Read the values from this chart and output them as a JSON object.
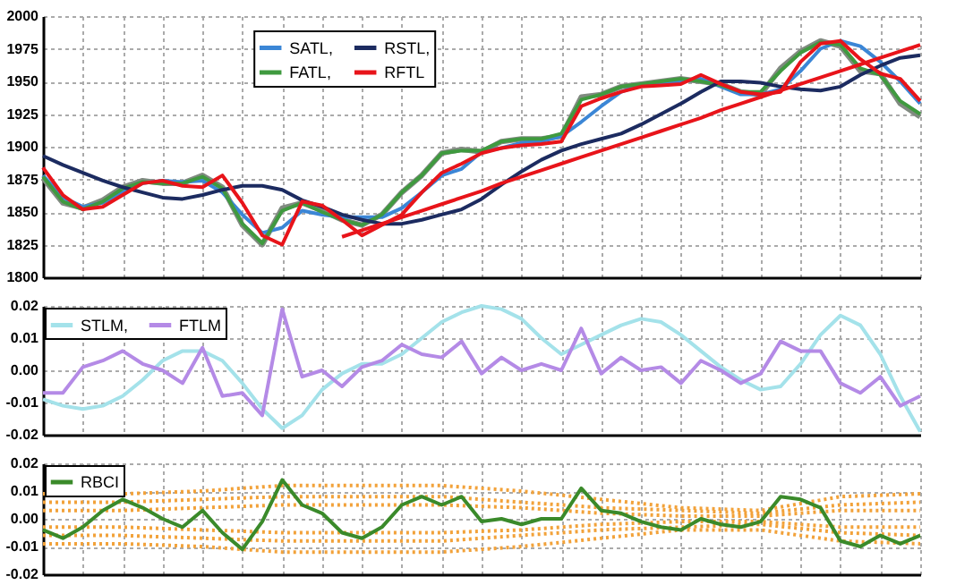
{
  "chart_data": [
    {
      "type": "line",
      "categories": [
        null,
        null,
        null,
        null,
        null,
        null,
        null,
        null,
        null,
        null,
        null,
        null,
        null,
        null,
        null,
        null,
        null,
        null,
        null,
        null,
        null,
        null,
        null,
        null,
        null,
        null,
        null,
        null,
        null,
        null,
        null,
        null,
        null,
        null,
        null,
        null,
        null,
        null,
        null,
        null,
        null,
        null,
        null,
        null,
        null
      ],
      "ylim": [
        1800,
        2000
      ],
      "yticks": [
        1800,
        1825,
        1850,
        1875,
        1900,
        1925,
        1950,
        1975,
        2000
      ],
      "tick_labels": "y",
      "grid": true,
      "legend": "top",
      "line_style": "solid",
      "marker": "none",
      "series": [
        {
          "color": "#808a80",
          "values": [
            1876,
            1857,
            1853,
            1859,
            1869,
            1874,
            1872,
            1872,
            1878,
            1869,
            1840,
            1825,
            1853,
            1857,
            1851,
            1844,
            1840,
            1848,
            1865,
            1878,
            1895,
            1898,
            1896,
            1904,
            1906,
            1906,
            1908,
            1938,
            1940,
            1946,
            1948,
            1950,
            1952,
            1950,
            1948,
            1942,
            1940,
            1960,
            1973,
            1981,
            1977,
            1958,
            1956,
            1933,
            1923
          ]
        },
        {
          "name": "SATL,",
          "color": "#3b86d6",
          "values": [
            1878,
            1861,
            1854,
            1857,
            1865,
            1872,
            1874,
            1873,
            1874,
            1865,
            1848,
            1834,
            1838,
            1851,
            1848,
            1846,
            1846,
            1846,
            1853,
            1865,
            1878,
            1883,
            1896,
            1899,
            1903,
            1904,
            1908,
            1919,
            1931,
            1942,
            1947,
            1948,
            1950,
            1952,
            1946,
            1940,
            1940,
            1944,
            1958,
            1975,
            1981,
            1977,
            1965,
            1950,
            1933
          ]
        },
        {
          "name": "FATL,",
          "color": "#3f9a3f",
          "values": [
            1877,
            1858,
            1852,
            1858,
            1868,
            1873,
            1872,
            1872,
            1877,
            1868,
            1841,
            1826,
            1851,
            1857,
            1850,
            1844,
            1840,
            1848,
            1865,
            1878,
            1895,
            1897,
            1897,
            1904,
            1906,
            1906,
            1910,
            1936,
            1940,
            1946,
            1948,
            1950,
            1952,
            1950,
            1947,
            1942,
            1942,
            1958,
            1972,
            1980,
            1978,
            1960,
            1955,
            1935,
            1925
          ]
        },
        {
          "name": "RSTL,",
          "color": "#1c2b60",
          "values": [
            1893,
            1886,
            1880,
            1874,
            1869,
            1865,
            1861,
            1860,
            1863,
            1867,
            1870,
            1870,
            1867,
            1859,
            1854,
            1848,
            1844,
            1841,
            1841,
            1844,
            1848,
            1852,
            1860,
            1871,
            1881,
            1890,
            1897,
            1902,
            1906,
            1910,
            1917,
            1925,
            1933,
            1942,
            1950,
            1950,
            1949,
            1946,
            1944,
            1943,
            1946,
            1955,
            1962,
            1968,
            1970
          ]
        },
        {
          "name": "RFTL",
          "color": "#e8141a",
          "values": [
            1884,
            1863,
            1852,
            1854,
            1863,
            1872,
            1874,
            1870,
            1869,
            1878,
            1857,
            1832,
            1825,
            1858,
            1855,
            1844,
            1832,
            1840,
            1848,
            1865,
            1880,
            1887,
            1895,
            1899,
            1901,
            1902,
            1904,
            1931,
            1937,
            1942,
            1946,
            1947,
            1948,
            1955,
            1948,
            1942,
            1940,
            1942,
            1965,
            1979,
            1981,
            1967,
            1956,
            1952,
            1935
          ]
        },
        {
          "color": "#e8141a",
          "values": [
            null,
            null,
            null,
            null,
            null,
            null,
            null,
            null,
            null,
            null,
            null,
            null,
            null,
            null,
            null,
            1831,
            1836,
            1841,
            1846,
            1851,
            1856,
            1861,
            1866,
            1872,
            1877,
            1882,
            1887,
            1892,
            1897,
            1902,
            1907,
            1912,
            1917,
            1922,
            1928,
            1933,
            1938,
            1943,
            1948,
            1953,
            1958,
            1963,
            1968,
            1973,
            1978
          ]
        }
      ]
    },
    {
      "type": "line",
      "categories": [
        null,
        null,
        null,
        null,
        null,
        null,
        null,
        null,
        null,
        null,
        null,
        null,
        null,
        null,
        null,
        null,
        null,
        null,
        null,
        null,
        null,
        null,
        null,
        null,
        null,
        null,
        null,
        null,
        null,
        null,
        null,
        null,
        null,
        null,
        null,
        null,
        null,
        null,
        null,
        null,
        null,
        null,
        null,
        null,
        null
      ],
      "ylim": [
        -0.02,
        0.02
      ],
      "yticks": [
        -0.02,
        -0.01,
        {
          "value": 0,
          "label": "0.00"
        },
        0.01,
        0.02
      ],
      "tick_labels": "y",
      "grid": true,
      "legend": "top left",
      "line_style": "solid",
      "marker": "none",
      "series": [
        {
          "name": "STLM,",
          "color": "#a4e2ea",
          "values": [
            -0.009,
            -0.011,
            -0.012,
            -0.011,
            -0.008,
            -0.003,
            0.003,
            0.006,
            0.006,
            0.003,
            -0.004,
            -0.012,
            -0.018,
            -0.014,
            -0.006,
            -0.001,
            0.002,
            0.002,
            0.005,
            0.01,
            0.015,
            0.018,
            0.02,
            0.019,
            0.016,
            0.01,
            0.005,
            0.008,
            0.011,
            0.014,
            0.016,
            0.015,
            0.011,
            0.006,
            0.001,
            -0.003,
            -0.006,
            -0.005,
            0.002,
            0.011,
            0.017,
            0.014,
            0.005,
            -0.008,
            -0.019
          ]
        },
        {
          "name": "FTLM",
          "color": "#b48ae6",
          "values": [
            -0.007,
            -0.007,
            0.001,
            0.003,
            0.006,
            0.002,
            0.0,
            -0.004,
            0.007,
            -0.008,
            -0.007,
            -0.014,
            0.019,
            -0.002,
            0.0,
            -0.005,
            0.001,
            0.003,
            0.008,
            0.005,
            0.004,
            0.009,
            -0.001,
            0.004,
            0.0,
            0.002,
            0.0,
            0.013,
            -0.001,
            0.004,
            0.0,
            0.001,
            -0.004,
            0.003,
            0.0,
            -0.004,
            -0.001,
            0.009,
            0.006,
            0.006,
            -0.004,
            -0.007,
            -0.002,
            -0.011,
            -0.008
          ]
        }
      ]
    },
    {
      "type": "line",
      "categories": [
        null,
        null,
        null,
        null,
        null,
        null,
        null,
        null,
        null,
        null,
        null,
        null,
        null,
        null,
        null,
        null,
        null,
        null,
        null,
        null,
        null,
        null,
        null,
        null,
        null,
        null,
        null,
        null,
        null,
        null,
        null,
        null,
        null,
        null,
        null,
        null,
        null,
        null,
        null,
        null,
        null,
        null,
        null,
        null,
        null
      ],
      "ylim": [
        -0.02,
        0.02
      ],
      "yticks": [
        -0.02,
        -0.01,
        {
          "value": 0,
          "label": "0.00"
        },
        0.01,
        0.02
      ],
      "tick_labels": "y",
      "grid": true,
      "legend": "top left",
      "marker": "none",
      "series": [
        {
          "color": "#f2a23a",
          "line_style": "dotted",
          "values": [
            0.009,
            null,
            null,
            null,
            0.009,
            null,
            null,
            null,
            0.01,
            null,
            null,
            null,
            0.012,
            null,
            null,
            null,
            0.012,
            null,
            null,
            null,
            0.012,
            null,
            null,
            null,
            0.01,
            null,
            null,
            null,
            0.007,
            null,
            null,
            null,
            0.004,
            null,
            null,
            null,
            0.003,
            null,
            null,
            null,
            0.008,
            null,
            null,
            null,
            0.009
          ]
        },
        {
          "color": "#f2a23a",
          "line_style": "dotted",
          "values": [
            0.006,
            null,
            null,
            null,
            0.006,
            null,
            null,
            null,
            0.007,
            null,
            null,
            null,
            0.008,
            null,
            null,
            null,
            0.008,
            null,
            null,
            null,
            0.008,
            null,
            null,
            null,
            0.006,
            null,
            null,
            null,
            0.004,
            null,
            null,
            null,
            0.003,
            null,
            null,
            null,
            0.002,
            null,
            null,
            null,
            0.005,
            null,
            null,
            null,
            0.006
          ]
        },
        {
          "color": "#f2a23a",
          "line_style": "dotted",
          "values": [
            0.003,
            null,
            null,
            null,
            0.003,
            null,
            null,
            null,
            0.004,
            null,
            null,
            null,
            0.005,
            null,
            null,
            null,
            0.005,
            null,
            null,
            null,
            0.005,
            null,
            null,
            null,
            0.004,
            null,
            null,
            null,
            0.002,
            null,
            null,
            null,
            0.001,
            null,
            null,
            null,
            0.001,
            null,
            null,
            null,
            0.003,
            null,
            null,
            null,
            0.003
          ]
        },
        {
          "color": "#f2a23a",
          "line_style": "dotted",
          "values": [
            -0.003,
            null,
            null,
            null,
            -0.003,
            null,
            null,
            null,
            -0.004,
            null,
            null,
            null,
            -0.005,
            null,
            null,
            null,
            -0.005,
            null,
            null,
            null,
            -0.005,
            null,
            null,
            null,
            -0.004,
            null,
            null,
            null,
            -0.002,
            null,
            null,
            null,
            -0.001,
            null,
            null,
            null,
            -0.001,
            null,
            null,
            null,
            -0.003,
            null,
            null,
            null,
            -0.003
          ]
        },
        {
          "color": "#f2a23a",
          "line_style": "dotted",
          "values": [
            -0.006,
            null,
            null,
            null,
            -0.006,
            null,
            null,
            null,
            -0.007,
            null,
            null,
            null,
            -0.008,
            null,
            null,
            null,
            -0.008,
            null,
            null,
            null,
            -0.008,
            null,
            null,
            null,
            -0.006,
            null,
            null,
            null,
            -0.004,
            null,
            null,
            null,
            -0.003,
            null,
            null,
            null,
            -0.002,
            null,
            null,
            null,
            -0.005,
            null,
            null,
            null,
            -0.006
          ]
        },
        {
          "color": "#f2a23a",
          "line_style": "dotted",
          "values": [
            -0.009,
            null,
            null,
            null,
            -0.009,
            null,
            null,
            null,
            -0.01,
            null,
            null,
            null,
            -0.012,
            null,
            null,
            null,
            -0.012,
            null,
            null,
            null,
            -0.012,
            null,
            null,
            null,
            -0.01,
            null,
            null,
            null,
            -0.007,
            null,
            null,
            null,
            -0.004,
            null,
            null,
            null,
            -0.004,
            null,
            null,
            null,
            -0.008,
            null,
            null,
            null,
            -0.009
          ]
        },
        {
          "name": "RBCI",
          "color": "#3a8a2a",
          "line_style": "solid",
          "values": [
            -0.004,
            -0.007,
            -0.003,
            0.003,
            0.007,
            0.004,
            0.0,
            -0.003,
            0.003,
            -0.005,
            -0.011,
            -0.001,
            0.014,
            0.005,
            0.002,
            -0.005,
            -0.007,
            -0.003,
            0.005,
            0.008,
            0.005,
            0.008,
            -0.001,
            0.0,
            -0.002,
            0.0,
            0.0,
            0.011,
            0.003,
            0.002,
            -0.001,
            -0.003,
            -0.004,
            0.0,
            -0.002,
            -0.003,
            -0.001,
            0.008,
            0.007,
            0.004,
            -0.008,
            -0.01,
            -0.006,
            -0.009,
            -0.006
          ]
        }
      ]
    }
  ]
}
